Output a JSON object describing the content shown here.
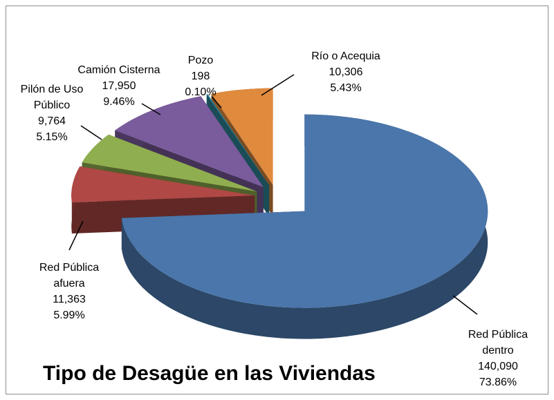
{
  "chart_data": {
    "type": "pie",
    "title": "Tipo de Desagüe en las Viviendas",
    "categories": [
      "Red Pública dentro",
      "Red Pública afuera",
      "Pilón de Uso Público",
      "Camión Cisterna",
      "Pozo",
      "Río o Acequia"
    ],
    "values": [
      140090,
      11363,
      9764,
      17950,
      198,
      10306
    ],
    "value_labels": [
      "140,090",
      "11,363",
      "9,764",
      "17,950",
      "198",
      "10,306"
    ],
    "percentages": [
      73.86,
      5.99,
      5.15,
      9.46,
      0.1,
      5.43
    ],
    "percentage_labels": [
      "73.86%",
      "5.99%",
      "5.15%",
      "9.46%",
      "0.10%",
      "5.43%"
    ],
    "colors": [
      "#4a76ab",
      "#b04845",
      "#8fae4f",
      "#7a5b9c",
      "#2f8a9e",
      "#e08a3e"
    ]
  }
}
